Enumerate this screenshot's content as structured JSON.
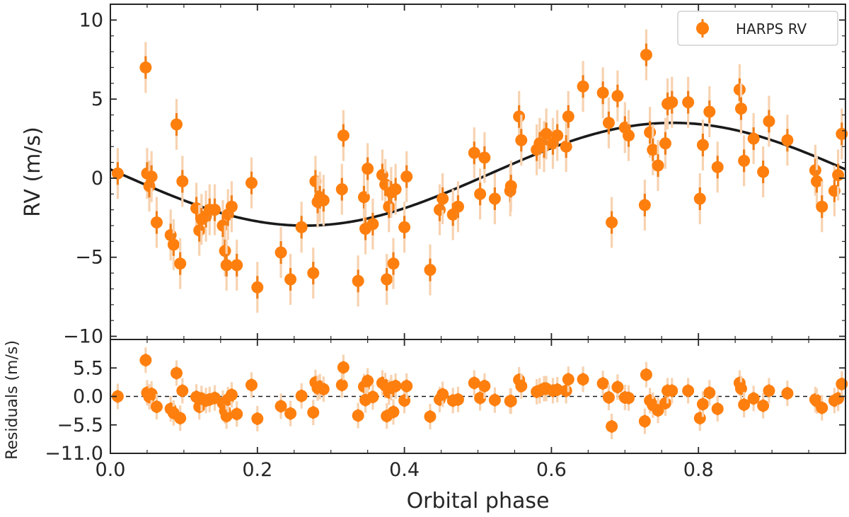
{
  "chart_data": {
    "type": "scatter",
    "x_label": "Orbital phase",
    "x_range": [
      0.0,
      1.0
    ],
    "x_ticks": [
      "0.0",
      "0.2",
      "0.4",
      "0.6",
      "0.8"
    ],
    "x_tick_values": [
      0.0,
      0.2,
      0.4,
      0.6,
      0.8
    ],
    "colors": {
      "points": "#ff7f0e",
      "errbar_inner": "#f07f1a",
      "errbar_outer": "#f7d2b0",
      "model": "#1a1a1a",
      "axis": "#262626"
    },
    "top_panel": {
      "ylabel": "RV (m/s)",
      "ylim": [
        -10.2,
        11
      ],
      "y_ticks": [
        "10",
        "5",
        "0",
        "−5",
        "−10"
      ],
      "y_tick_values": [
        10,
        5,
        0,
        -5,
        -10
      ],
      "legend": {
        "label": "HARPS RV",
        "position": "upper right"
      },
      "model_curve": {
        "type": "sinusoid",
        "amplitude": 3.25,
        "offset": 0.25,
        "phase_of_max": 0.765,
        "line_color": "#1a1a1a"
      },
      "series": [
        {
          "name": "HARPS RV",
          "x": [
            0.01,
            0.048,
            0.05,
            0.053,
            0.056,
            0.063,
            0.082,
            0.086,
            0.09,
            0.095,
            0.098,
            0.117,
            0.121,
            0.124,
            0.13,
            0.135,
            0.142,
            0.153,
            0.156,
            0.158,
            0.16,
            0.165,
            0.172,
            0.192,
            0.2,
            0.232,
            0.245,
            0.26,
            0.276,
            0.279,
            0.282,
            0.285,
            0.29,
            0.315,
            0.317,
            0.337,
            0.345,
            0.347,
            0.35,
            0.357,
            0.37,
            0.374,
            0.376,
            0.379,
            0.382,
            0.385,
            0.388,
            0.4,
            0.403,
            0.435,
            0.448,
            0.452,
            0.466,
            0.473,
            0.495,
            0.503,
            0.509,
            0.523,
            0.544,
            0.545,
            0.556,
            0.559,
            0.58,
            0.584,
            0.59,
            0.593,
            0.602,
            0.608,
            0.62,
            0.623,
            0.643,
            0.67,
            0.678,
            0.682,
            0.69,
            0.7,
            0.705,
            0.727,
            0.729,
            0.734,
            0.738,
            0.745,
            0.755,
            0.758,
            0.764,
            0.786,
            0.802,
            0.806,
            0.815,
            0.826,
            0.856,
            0.858,
            0.862,
            0.875,
            0.888,
            0.896,
            0.921,
            0.959,
            0.961,
            0.968,
            0.985,
            0.99,
            0.995
          ],
          "y": [
            0.3,
            7.0,
            0.3,
            -0.5,
            0.1,
            -2.8,
            -3.6,
            -4.2,
            3.4,
            -5.4,
            -0.2,
            -1.9,
            -3.3,
            -2.6,
            -2.4,
            -2.0,
            -2.0,
            -3.0,
            -4.6,
            -5.5,
            -2.3,
            -1.8,
            -5.5,
            -0.3,
            -6.9,
            -4.7,
            -6.4,
            -3.1,
            -6.0,
            -0.2,
            -1.5,
            -1.2,
            -1.4,
            -0.7,
            2.7,
            -6.5,
            -1.2,
            -3.2,
            0.6,
            -2.9,
            0.2,
            -0.4,
            -6.4,
            -1.8,
            -0.9,
            -5.4,
            -0.7,
            -3.1,
            0.1,
            -5.8,
            -2.0,
            -1.3,
            -2.3,
            -1.8,
            1.6,
            -1.0,
            1.3,
            -1.3,
            -0.8,
            -0.5,
            3.9,
            2.4,
            1.8,
            2.2,
            2.0,
            2.8,
            2.2,
            2.7,
            2.0,
            3.9,
            5.8,
            5.4,
            3.5,
            -2.8,
            5.2,
            3.2,
            2.7,
            -1.7,
            7.8,
            2.9,
            1.8,
            0.8,
            2.2,
            4.7,
            4.8,
            4.8,
            -1.3,
            2.1,
            4.2,
            0.7,
            5.6,
            4.4,
            1.1,
            2.5,
            0.4,
            3.6,
            2.4,
            0.5,
            -0.2,
            -1.8,
            -0.8,
            0.2,
            2.8
          ]
        }
      ]
    },
    "bottom_panel": {
      "ylabel": "Residuals (m/s)",
      "ylim": [
        -11.0,
        11.0
      ],
      "y_ticks": [
        "5.5",
        "0.0",
        "−5.5",
        "−11.0"
      ],
      "y_tick_values": [
        5.5,
        0.0,
        -5.5,
        -11.0
      ],
      "zero_line": "dashed",
      "series": [
        {
          "name": "Residuals",
          "x": [
            0.01,
            0.048,
            0.05,
            0.053,
            0.056,
            0.063,
            0.082,
            0.086,
            0.09,
            0.095,
            0.098,
            0.117,
            0.121,
            0.124,
            0.13,
            0.135,
            0.142,
            0.153,
            0.156,
            0.158,
            0.16,
            0.165,
            0.172,
            0.192,
            0.2,
            0.232,
            0.245,
            0.26,
            0.276,
            0.279,
            0.282,
            0.285,
            0.29,
            0.315,
            0.317,
            0.337,
            0.345,
            0.347,
            0.35,
            0.357,
            0.37,
            0.374,
            0.376,
            0.379,
            0.382,
            0.385,
            0.388,
            0.4,
            0.403,
            0.435,
            0.448,
            0.452,
            0.466,
            0.473,
            0.495,
            0.503,
            0.509,
            0.523,
            0.544,
            0.545,
            0.556,
            0.559,
            0.58,
            0.584,
            0.59,
            0.593,
            0.602,
            0.608,
            0.62,
            0.623,
            0.643,
            0.67,
            0.678,
            0.682,
            0.69,
            0.7,
            0.705,
            0.727,
            0.729,
            0.734,
            0.738,
            0.745,
            0.755,
            0.758,
            0.764,
            0.786,
            0.802,
            0.806,
            0.815,
            0.826,
            0.856,
            0.858,
            0.862,
            0.875,
            0.888,
            0.896,
            0.921,
            0.959,
            0.961,
            0.968,
            0.985,
            0.99,
            0.995
          ],
          "y": [
            0.0,
            7.0,
            0.7,
            -0.1,
            0.5,
            -2.0,
            -2.4,
            -3.2,
            4.5,
            -4.2,
            1.1,
            -0.1,
            -2.0,
            -0.4,
            -0.8,
            -0.6,
            -0.3,
            -1.3,
            -2.8,
            -3.8,
            -0.6,
            0.3,
            -3.4,
            2.2,
            -4.3,
            -1.9,
            -3.3,
            0.1,
            -3.1,
            2.7,
            1.6,
            1.9,
            1.4,
            2.2,
            5.6,
            -3.7,
            1.9,
            -0.7,
            3.0,
            -0.1,
            2.6,
            2.1,
            -3.8,
            0.8,
            1.7,
            -3.0,
            2.0,
            -0.8,
            2.0,
            -3.9,
            -0.6,
            0.4,
            -0.8,
            -0.6,
            2.6,
            -0.3,
            2.0,
            -0.7,
            -0.9,
            -0.9,
            3.2,
            2.0,
            0.9,
            1.1,
            1.5,
            1.5,
            1.1,
            1.3,
            1.1,
            3.3,
            3.3,
            2.5,
            -0.2,
            -5.8,
            1.8,
            -0.2,
            -0.3,
            -4.8,
            4.2,
            -0.8,
            -1.7,
            -2.7,
            -1.3,
            1.1,
            1.1,
            1.1,
            -4.2,
            -1.5,
            0.7,
            -2.4,
            2.6,
            1.5,
            -1.6,
            -0.4,
            -1.8,
            1.1,
            0.6,
            -0.6,
            -0.9,
            -2.2,
            -0.8,
            -0.4,
            2.4
          ]
        }
      ]
    }
  }
}
